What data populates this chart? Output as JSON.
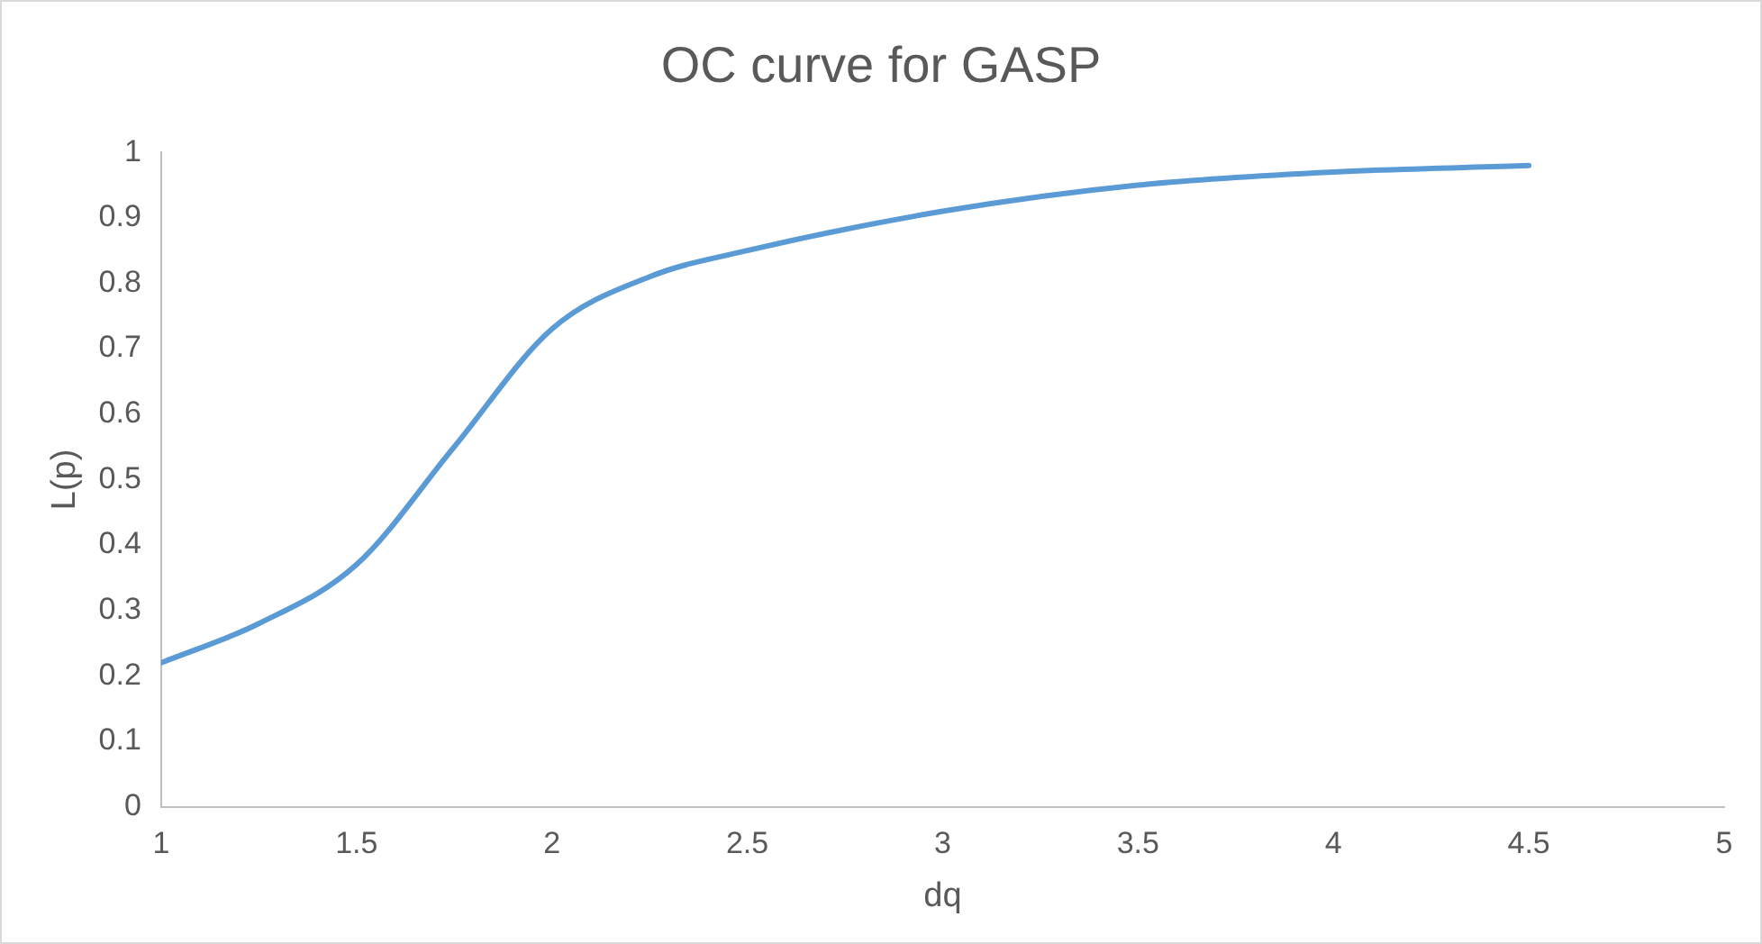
{
  "chart_data": {
    "type": "line",
    "title": "OC curve for GASP",
    "xlabel": "dq",
    "ylabel": "L(p)",
    "x": [
      1,
      1.25,
      1.5,
      1.75,
      2,
      2.25,
      2.5,
      3,
      3.5,
      4,
      4.5
    ],
    "series": [
      {
        "color": "#5b9bd5",
        "values": [
          0.22,
          0.28,
          0.37,
          0.55,
          0.73,
          0.81,
          0.85,
          0.91,
          0.95,
          0.97,
          0.98
        ]
      }
    ],
    "xlim": [
      1,
      5
    ],
    "xticks": [
      1,
      1.5,
      2,
      2.5,
      3,
      3.5,
      4,
      4.5,
      5
    ],
    "ylim": [
      0,
      1
    ],
    "yticks": [
      0,
      0.1,
      0.2,
      0.3,
      0.4,
      0.5,
      0.6,
      0.7,
      0.8,
      0.9,
      1
    ],
    "grid": false,
    "legend": false,
    "marker": "none",
    "line_style": "solid"
  }
}
